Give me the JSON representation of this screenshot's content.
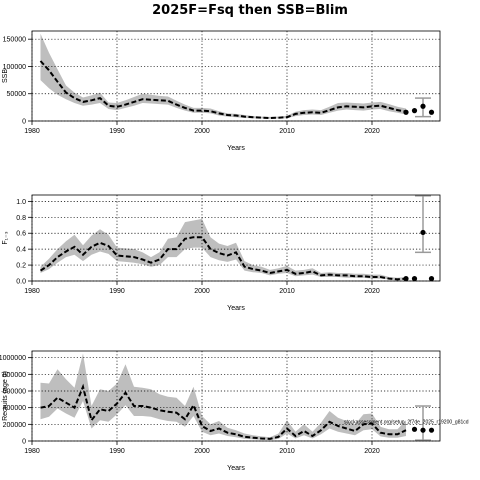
{
  "chart_data": [
    {
      "type": "line",
      "title": "2025F=Fsq then SSB=Blim",
      "ylabel": "SSB",
      "xlabel": "Years",
      "xlim": [
        1980,
        2028
      ],
      "ylim": [
        0,
        165000
      ],
      "x_ticks": [
        1980,
        1990,
        2000,
        2010,
        2020
      ],
      "y_ticks": [
        0,
        50000,
        100000,
        150000
      ],
      "y_tick_labels": [
        "0",
        "50000",
        "100000",
        "150000"
      ],
      "grid": true,
      "x": [
        1981,
        1982,
        1983,
        1984,
        1985,
        1986,
        1987,
        1988,
        1989,
        1990,
        1991,
        1992,
        1993,
        1994,
        1995,
        1996,
        1997,
        1998,
        1999,
        2000,
        2001,
        2002,
        2003,
        2004,
        2005,
        2006,
        2007,
        2008,
        2009,
        2010,
        2011,
        2012,
        2013,
        2014,
        2015,
        2016,
        2017,
        2018,
        2019,
        2020,
        2021,
        2022,
        2023,
        2024
      ],
      "y": [
        110000,
        93000,
        72000,
        52000,
        42000,
        35000,
        38000,
        42000,
        28000,
        26000,
        30000,
        35000,
        40000,
        39000,
        38000,
        37000,
        30000,
        24000,
        19000,
        19000,
        18000,
        14000,
        11000,
        10000,
        8000,
        7000,
        6000,
        5500,
        6000,
        7000,
        13000,
        15000,
        16000,
        15000,
        20000,
        25000,
        27000,
        26000,
        25000,
        27000,
        28000,
        24000,
        20000,
        17000
      ],
      "lower": [
        75000,
        60000,
        48000,
        40000,
        33000,
        28000,
        30000,
        33000,
        22000,
        20000,
        24000,
        28000,
        33000,
        32000,
        31000,
        30000,
        24000,
        19000,
        15000,
        15000,
        14000,
        10000,
        8000,
        7000,
        5500,
        5000,
        4500,
        4000,
        4500,
        5000,
        9000,
        11000,
        12000,
        11000,
        15000,
        19000,
        21000,
        20000,
        19000,
        21000,
        22000,
        18000,
        15000,
        12000
      ],
      "upper": [
        160000,
        125000,
        95000,
        65000,
        52000,
        43000,
        47000,
        52000,
        34000,
        33000,
        38000,
        44000,
        50000,
        48000,
        46000,
        45000,
        37000,
        30000,
        24000,
        24000,
        23000,
        18000,
        14000,
        13000,
        11000,
        9000,
        8000,
        7500,
        8000,
        9500,
        17000,
        20000,
        21000,
        20000,
        26000,
        33000,
        34000,
        33000,
        32000,
        34000,
        35000,
        31000,
        26000,
        23000
      ],
      "projection_points": [
        {
          "x": 2024,
          "y": 16000
        },
        {
          "x": 2025,
          "y": 19000
        },
        {
          "x": 2026,
          "y": 27000
        },
        {
          "x": 2027,
          "y": 16000
        }
      ],
      "projection_interval": {
        "x": 2026,
        "lower": 8000,
        "upper": 42000
      }
    },
    {
      "type": "line",
      "ylabel": "F₁₋₃",
      "xlabel": "Years",
      "xlim": [
        1980,
        2028
      ],
      "ylim": [
        0,
        1.08
      ],
      "x_ticks": [
        1980,
        1990,
        2000,
        2010,
        2020
      ],
      "y_ticks": [
        0,
        0.2,
        0.4,
        0.6,
        0.8,
        1.0
      ],
      "y_tick_labels": [
        "0.0",
        "0.2",
        "0.4",
        "0.6",
        "0.8",
        "1.0"
      ],
      "grid": true,
      "x": [
        1981,
        1982,
        1983,
        1984,
        1985,
        1986,
        1987,
        1988,
        1989,
        1990,
        1991,
        1992,
        1993,
        1994,
        1995,
        1996,
        1997,
        1998,
        1999,
        2000,
        2001,
        2002,
        2003,
        2004,
        2005,
        2006,
        2007,
        2008,
        2009,
        2010,
        2011,
        2012,
        2013,
        2014,
        2015,
        2016,
        2017,
        2018,
        2019,
        2020,
        2021,
        2022,
        2023,
        2024
      ],
      "y": [
        0.13,
        0.2,
        0.3,
        0.37,
        0.43,
        0.33,
        0.43,
        0.48,
        0.44,
        0.32,
        0.31,
        0.3,
        0.27,
        0.23,
        0.27,
        0.4,
        0.4,
        0.53,
        0.55,
        0.55,
        0.4,
        0.35,
        0.32,
        0.36,
        0.18,
        0.15,
        0.13,
        0.1,
        0.12,
        0.14,
        0.09,
        0.1,
        0.12,
        0.07,
        0.08,
        0.07,
        0.07,
        0.06,
        0.06,
        0.05,
        0.05,
        0.03,
        0.02,
        0.03
      ],
      "lower": [
        0.1,
        0.15,
        0.23,
        0.3,
        0.33,
        0.25,
        0.33,
        0.37,
        0.34,
        0.25,
        0.24,
        0.23,
        0.21,
        0.18,
        0.2,
        0.3,
        0.3,
        0.4,
        0.42,
        0.42,
        0.3,
        0.26,
        0.24,
        0.27,
        0.13,
        0.11,
        0.1,
        0.07,
        0.09,
        0.1,
        0.06,
        0.07,
        0.08,
        0.05,
        0.05,
        0.05,
        0.04,
        0.04,
        0.04,
        0.03,
        0.03,
        0.02,
        0.01,
        0.02
      ],
      "upper": [
        0.18,
        0.28,
        0.4,
        0.5,
        0.58,
        0.45,
        0.57,
        0.65,
        0.58,
        0.42,
        0.41,
        0.4,
        0.36,
        0.3,
        0.36,
        0.53,
        0.55,
        0.74,
        0.76,
        0.78,
        0.55,
        0.47,
        0.44,
        0.48,
        0.25,
        0.2,
        0.18,
        0.14,
        0.16,
        0.19,
        0.13,
        0.14,
        0.16,
        0.1,
        0.11,
        0.1,
        0.1,
        0.09,
        0.09,
        0.08,
        0.08,
        0.05,
        0.04,
        0.05
      ],
      "projection_points": [
        {
          "x": 2024,
          "y": 0.03
        },
        {
          "x": 2025,
          "y": 0.03
        },
        {
          "x": 2026,
          "y": 0.61
        },
        {
          "x": 2027,
          "y": 0.03
        }
      ],
      "projection_interval": {
        "x": 2026,
        "lower": 0.36,
        "upper": 1.07
      }
    },
    {
      "type": "line",
      "ylabel": "Recruits (age 0)",
      "xlabel": "Years",
      "xlim": [
        1980,
        2028
      ],
      "ylim": [
        0,
        1080000
      ],
      "x_ticks": [
        1980,
        1990,
        2000,
        2010,
        2020
      ],
      "y_ticks": [
        0,
        200000,
        400000,
        600000,
        800000,
        1000000
      ],
      "y_tick_labels": [
        "0",
        "200000",
        "400000",
        "600000",
        "800000",
        "1000000"
      ],
      "grid": true,
      "x": [
        1981,
        1982,
        1983,
        1984,
        1985,
        1986,
        1987,
        1988,
        1989,
        1990,
        1991,
        1992,
        1993,
        1994,
        1995,
        1996,
        1997,
        1998,
        1999,
        2000,
        2001,
        2002,
        2003,
        2004,
        2005,
        2006,
        2007,
        2008,
        2009,
        2010,
        2011,
        2012,
        2013,
        2014,
        2015,
        2016,
        2017,
        2018,
        2019,
        2020,
        2021,
        2022,
        2023,
        2024
      ],
      "y": [
        400000,
        420000,
        520000,
        460000,
        400000,
        650000,
        250000,
        380000,
        360000,
        450000,
        580000,
        420000,
        420000,
        400000,
        370000,
        350000,
        340000,
        260000,
        430000,
        180000,
        120000,
        150000,
        100000,
        80000,
        50000,
        40000,
        30000,
        25000,
        50000,
        150000,
        60000,
        120000,
        60000,
        130000,
        230000,
        180000,
        150000,
        120000,
        200000,
        210000,
        100000,
        80000,
        80000,
        130000
      ],
      "lower": [
        260000,
        290000,
        390000,
        330000,
        280000,
        480000,
        150000,
        250000,
        230000,
        320000,
        430000,
        300000,
        300000,
        290000,
        260000,
        240000,
        230000,
        170000,
        300000,
        110000,
        70000,
        90000,
        60000,
        45000,
        25000,
        20000,
        15000,
        12000,
        25000,
        90000,
        30000,
        70000,
        30000,
        80000,
        150000,
        110000,
        90000,
        70000,
        130000,
        140000,
        55000,
        40000,
        40000,
        60000
      ],
      "upper": [
        700000,
        690000,
        860000,
        740000,
        640000,
        1050000,
        420000,
        620000,
        600000,
        690000,
        920000,
        650000,
        640000,
        620000,
        560000,
        530000,
        520000,
        420000,
        650000,
        300000,
        200000,
        240000,
        160000,
        130000,
        90000,
        70000,
        55000,
        45000,
        90000,
        250000,
        110000,
        200000,
        110000,
        220000,
        360000,
        280000,
        240000,
        200000,
        320000,
        330000,
        170000,
        140000,
        140000,
        250000
      ],
      "projection_points": [
        {
          "x": 2025,
          "y": 140000
        },
        {
          "x": 2026,
          "y": 130000
        },
        {
          "x": 2027,
          "y": 130000
        }
      ],
      "projection_interval": {
        "x": 2026,
        "lower": 10000,
        "upper": 420000
      },
      "annotation": "stockassessment.org/setup_2f7de_2025_r19200_g81cd"
    }
  ]
}
